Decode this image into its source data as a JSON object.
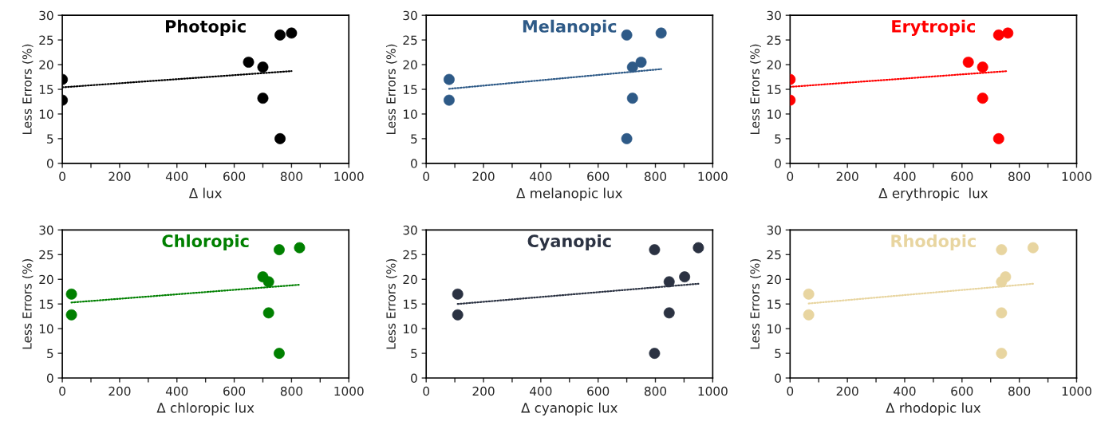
{
  "chart_data": [
    {
      "type": "scatter",
      "title": "Photopic",
      "xlabel": "Δ lux",
      "ylabel": "Less Errors (%)",
      "xlim": [
        0,
        1000
      ],
      "ylim": [
        0,
        30
      ],
      "xticks": [
        0,
        {
          "value": 100,
          "label": null
        },
        200,
        {
          "value": 300,
          "label": null
        },
        400,
        {
          "value": 500,
          "label": null
        },
        600,
        {
          "value": 700,
          "label": null
        },
        800,
        {
          "value": 900,
          "label": null
        },
        1000
      ],
      "yticks": [
        0,
        5,
        10,
        15,
        20,
        25,
        30
      ],
      "grid": false,
      "series": [
        {
          "marker": "circle",
          "color": "#000000",
          "x": [
            0,
            0,
            650,
            700,
            700,
            760,
            800,
            760
          ],
          "values": [
            17,
            12.8,
            20.5,
            19.5,
            13.2,
            26,
            26.4,
            5
          ]
        },
        {
          "type": "line",
          "marker": "none",
          "line_style": "dotted",
          "color": "#000000",
          "x": [
            0,
            800
          ],
          "values": [
            15.4,
            18.7
          ]
        }
      ]
    },
    {
      "type": "scatter",
      "title": "Melanopic",
      "xlabel": "Δ melanopic lux",
      "ylabel": "Less Errors (%)",
      "xlim": [
        0,
        1000
      ],
      "ylim": [
        0,
        30
      ],
      "xticks": [
        0,
        {
          "value": 100,
          "label": null
        },
        200,
        {
          "value": 300,
          "label": null
        },
        400,
        {
          "value": 500,
          "label": null
        },
        600,
        {
          "value": 700,
          "label": null
        },
        800,
        {
          "value": 900,
          "label": null
        },
        1000
      ],
      "yticks": [
        0,
        5,
        10,
        15,
        20,
        25,
        30
      ],
      "grid": false,
      "series": [
        {
          "marker": "circle",
          "color": "#2e5a87",
          "x": [
            80,
            80,
            700,
            820,
            750,
            720,
            720,
            700
          ],
          "values": [
            17,
            12.8,
            26,
            26.4,
            20.5,
            19.5,
            13.2,
            5
          ]
        },
        {
          "type": "line",
          "marker": "none",
          "line_style": "dotted",
          "color": "#2e5a87",
          "x": [
            80,
            820
          ],
          "values": [
            15.1,
            19.1
          ]
        }
      ]
    },
    {
      "type": "scatter",
      "title": "Erytropic",
      "xlabel": "Δ erythropic  lux",
      "ylabel": "Less Errors (%)",
      "xlim": [
        0,
        1000
      ],
      "ylim": [
        0,
        30
      ],
      "xticks": [
        0,
        {
          "value": 100,
          "label": null
        },
        200,
        {
          "value": 300,
          "label": null
        },
        400,
        {
          "value": 500,
          "label": null
        },
        600,
        {
          "value": 700,
          "label": null
        },
        800,
        {
          "value": 900,
          "label": null
        },
        1000
      ],
      "yticks": [
        0,
        5,
        10,
        15,
        20,
        25,
        30
      ],
      "grid": false,
      "series": [
        {
          "marker": "circle",
          "color": "#ff0000",
          "x": [
            0,
            0,
            622,
            672,
            672,
            728,
            760,
            728
          ],
          "values": [
            17,
            12.8,
            20.5,
            19.5,
            13.2,
            26,
            26.4,
            5
          ]
        },
        {
          "type": "line",
          "marker": "none",
          "line_style": "dotted",
          "color": "#ff0000",
          "x": [
            0,
            760
          ],
          "values": [
            15.5,
            18.7
          ]
        }
      ]
    },
    {
      "type": "scatter",
      "title": "Chloropic",
      "xlabel": "Δ chloropic lux",
      "ylabel": "Less Errors (%)",
      "xlim": [
        0,
        1000
      ],
      "ylim": [
        0,
        30
      ],
      "xticks": [
        0,
        {
          "value": 100,
          "label": null
        },
        200,
        {
          "value": 300,
          "label": null
        },
        400,
        {
          "value": 500,
          "label": null
        },
        600,
        {
          "value": 700,
          "label": null
        },
        800,
        {
          "value": 900,
          "label": null
        },
        1000
      ],
      "yticks": [
        0,
        5,
        10,
        15,
        20,
        25,
        30
      ],
      "grid": false,
      "series": [
        {
          "marker": "circle",
          "color": "#008000",
          "x": [
            32,
            32,
            700,
            720,
            720,
            757,
            828,
            757
          ],
          "values": [
            17,
            12.8,
            20.5,
            19.5,
            13.2,
            26,
            26.4,
            5
          ]
        },
        {
          "type": "line",
          "marker": "none",
          "line_style": "dotted",
          "color": "#008000",
          "x": [
            32,
            828
          ],
          "values": [
            15.3,
            18.9
          ]
        }
      ]
    },
    {
      "type": "scatter",
      "title": "Cyanopic",
      "xlabel": "Δ cyanopic lux",
      "ylabel": "Less Errors (%)",
      "xlim": [
        0,
        1000
      ],
      "ylim": [
        0,
        30
      ],
      "xticks": [
        0,
        {
          "value": 100,
          "label": null
        },
        200,
        {
          "value": 300,
          "label": null
        },
        400,
        {
          "value": 500,
          "label": null
        },
        600,
        {
          "value": 700,
          "label": null
        },
        800,
        {
          "value": 900,
          "label": null
        },
        1000
      ],
      "yticks": [
        0,
        5,
        10,
        15,
        20,
        25,
        30
      ],
      "grid": false,
      "series": [
        {
          "marker": "circle",
          "color": "#2b3242",
          "x": [
            110,
            110,
            797,
            950,
            902,
            848,
            848,
            797
          ],
          "values": [
            17,
            12.8,
            26,
            26.4,
            20.5,
            19.5,
            13.2,
            5
          ]
        },
        {
          "type": "line",
          "marker": "none",
          "line_style": "dotted",
          "color": "#2b3242",
          "x": [
            110,
            950
          ],
          "values": [
            15.0,
            19.1
          ]
        }
      ]
    },
    {
      "type": "scatter",
      "title": "Rhodopic",
      "xlabel": "Δ rhodopic lux",
      "ylabel": "Less Errors (%)",
      "xlim": [
        0,
        1000
      ],
      "ylim": [
        0,
        30
      ],
      "xticks": [
        0,
        {
          "value": 100,
          "label": null
        },
        200,
        {
          "value": 300,
          "label": null
        },
        400,
        {
          "value": 500,
          "label": null
        },
        600,
        {
          "value": 700,
          "label": null
        },
        800,
        {
          "value": 900,
          "label": null
        },
        1000
      ],
      "yticks": [
        0,
        5,
        10,
        15,
        20,
        25,
        30
      ],
      "grid": false,
      "series": [
        {
          "marker": "circle",
          "color": "#e8d5a0",
          "x": [
            65,
            65,
            738,
            848,
            752,
            738,
            738,
            738
          ],
          "values": [
            17,
            12.8,
            26,
            26.4,
            20.5,
            19.5,
            13.2,
            5
          ]
        },
        {
          "type": "line",
          "marker": "none",
          "line_style": "dotted",
          "color": "#e8d5a0",
          "x": [
            65,
            848
          ],
          "values": [
            15.1,
            19.1
          ]
        }
      ]
    }
  ]
}
